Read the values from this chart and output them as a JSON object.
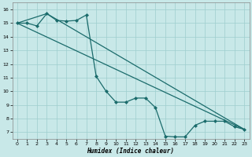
{
  "xlabel": "Humidex (Indice chaleur)",
  "bg_color": "#c8e8e8",
  "line_color": "#1a6b6b",
  "grid_color": "#9ecece",
  "xlim": [
    -0.5,
    23.5
  ],
  "ylim": [
    6.5,
    16.5
  ],
  "xticks": [
    0,
    1,
    2,
    3,
    4,
    5,
    6,
    7,
    8,
    9,
    10,
    11,
    12,
    13,
    14,
    15,
    16,
    17,
    18,
    19,
    20,
    21,
    22,
    23
  ],
  "yticks": [
    7,
    8,
    9,
    10,
    11,
    12,
    13,
    14,
    15,
    16
  ],
  "line1_x": [
    0,
    1,
    2,
    3,
    4,
    5,
    6,
    7,
    8,
    9,
    10,
    11,
    12,
    13,
    14,
    15,
    16,
    17,
    18,
    19,
    20,
    21,
    22,
    23
  ],
  "line1_y": [
    15.0,
    15.0,
    14.8,
    15.7,
    15.2,
    15.15,
    15.2,
    15.6,
    11.1,
    10.0,
    9.2,
    9.2,
    9.5,
    9.5,
    8.8,
    6.7,
    6.65,
    6.65,
    7.5,
    7.8,
    7.8,
    7.8,
    7.4,
    7.2
  ],
  "line2_x": [
    0,
    23
  ],
  "line2_y": [
    15.0,
    7.2
  ],
  "line3_x": [
    0,
    3,
    23
  ],
  "line3_y": [
    15.0,
    15.7,
    7.2
  ]
}
